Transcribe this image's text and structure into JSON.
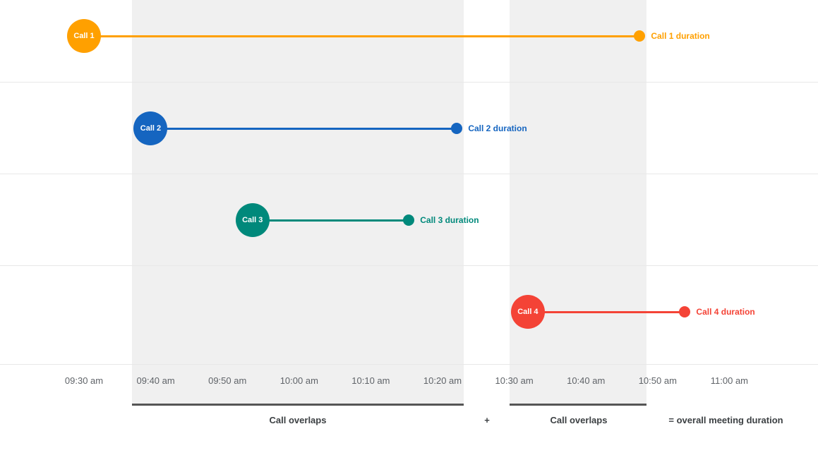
{
  "chart_data": {
    "type": "timeline",
    "title": "",
    "x_axis": {
      "ticks": [
        "09:30 am",
        "09:40 am",
        "09:50 am",
        "10:00 am",
        "10:10 am",
        "10:20 am",
        "10:30 am",
        "10:40 am",
        "10:50 am",
        "11:00 am"
      ],
      "start": "09:30 am",
      "end": "11:00 am",
      "minutes_per_tick": 10
    },
    "calls": [
      {
        "label": "Call 1",
        "duration_label": "Call 1 duration",
        "color": "#FFA000",
        "start_time": "09:30 am",
        "end_time": "10:47 am",
        "start_min": 0,
        "end_min": 77.5
      },
      {
        "label": "Call 2",
        "duration_label": "Call 2 duration",
        "color": "#1565C0",
        "start_time": "09:39 am",
        "end_time": "10:22 am",
        "start_min": 9.3,
        "end_min": 52
      },
      {
        "label": "Call 3",
        "duration_label": "Call 3 duration",
        "color": "#00897B",
        "start_time": "09:53 am",
        "end_time": "10:15 am",
        "start_min": 23.5,
        "end_min": 45.3
      },
      {
        "label": "Call 4",
        "duration_label": "Call 4 duration",
        "color": "#F44336",
        "start_time": "10:32 am",
        "end_time": "10:54 am",
        "start_min": 61.9,
        "end_min": 83.8
      }
    ],
    "overlap_regions": [
      {
        "label": "Call overlaps",
        "start_min": 9.3,
        "end_min": 52
      },
      {
        "label": "Call overlaps",
        "start_min": 61.9,
        "end_min": 77.5
      }
    ],
    "annotations": {
      "overlap1": "Call overlaps",
      "plus": "+",
      "overlap2": "Call overlaps",
      "equals": "= overall meeting duration"
    },
    "colors": {
      "region": "#f0f0f0",
      "gridline": "#e8e8e8",
      "underline": "#555555",
      "tick_text": "#5f6368",
      "annotation_text": "#3c4043"
    }
  }
}
